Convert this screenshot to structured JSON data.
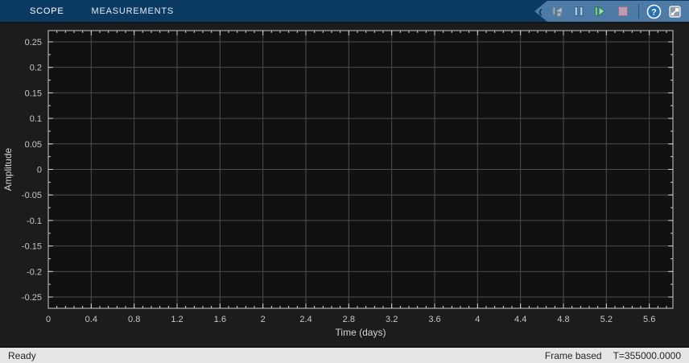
{
  "toolbar": {
    "tabs": [
      {
        "label": "SCOPE",
        "active": true
      },
      {
        "label": "MEASUREMENTS",
        "active": false
      }
    ],
    "buttons": [
      {
        "name": "step-back",
        "enabled": false
      },
      {
        "name": "pause",
        "enabled": true
      },
      {
        "name": "step-forward",
        "enabled": true
      },
      {
        "name": "stop",
        "enabled": false
      },
      {
        "name": "help",
        "enabled": true
      },
      {
        "name": "pop-out",
        "enabled": true
      }
    ],
    "help_glyph": "?",
    "chevron_glyph": "‹"
  },
  "status_bar": {
    "status": "Ready",
    "mode": "Frame based",
    "time": "T=355000.0000"
  },
  "chart_data": {
    "type": "line",
    "title": "",
    "xlabel": "Time (days)",
    "ylabel": "Amplitude",
    "xlim": [
      0,
      5.82
    ],
    "ylim": [
      -0.272,
      0.272
    ],
    "xtick_values": [
      0,
      0.4,
      0.8,
      1.2,
      1.6,
      2,
      2.4,
      2.8,
      3.2,
      3.6,
      4,
      4.4,
      4.8,
      5.2,
      5.6
    ],
    "xtick_labels": [
      "0",
      "0.4",
      "0.8",
      "1.2",
      "1.6",
      "2",
      "2.4",
      "2.8",
      "3.2",
      "3.6",
      "4",
      "4.4",
      "4.8",
      "5.2",
      "5.6"
    ],
    "ytick_values": [
      0.25,
      0.2,
      0.15,
      0.1,
      0.05,
      0,
      -0.05,
      -0.1,
      -0.15,
      -0.2,
      -0.25
    ],
    "ytick_labels": [
      "0.25",
      "0.2",
      "0.15",
      "0.1",
      "0.05",
      "0",
      "-0.05",
      "-0.1",
      "-0.15",
      "-0.2",
      "-0.25"
    ],
    "minor_x_step": 0.08,
    "minor_y_step": 0.025,
    "grid": true,
    "legend": null,
    "series": [],
    "colors": {
      "plot_bg": "#111111",
      "figure_bg": "#1c1c1c",
      "grid": "#4d4d4d",
      "axis": "#cccccc",
      "tick_label": "#c8c8c8",
      "axis_label": "#d4d4d4"
    }
  }
}
